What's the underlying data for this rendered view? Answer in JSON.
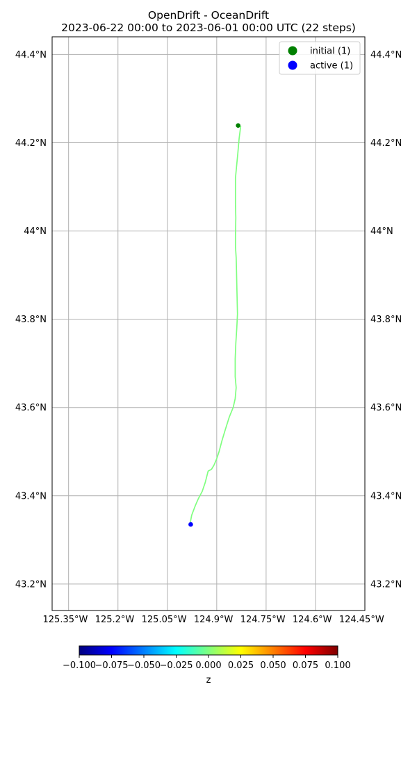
{
  "chart_data": {
    "type": "line",
    "title": "OpenDrift - OceanDrift",
    "subtitle": "2023-06-22 00:00 to 2023-06-01 00:00 UTC (22 steps)",
    "xlim": [
      -125.39,
      -124.44
    ],
    "ylim": [
      43.14,
      44.44
    ],
    "grid": true,
    "x_ticks": [
      {
        "value": -125.35,
        "label": "125.35°W"
      },
      {
        "value": -125.2,
        "label": "125.2°W"
      },
      {
        "value": -125.05,
        "label": "125.05°W"
      },
      {
        "value": -124.9,
        "label": "124.9°W"
      },
      {
        "value": -124.75,
        "label": "124.75°W"
      },
      {
        "value": -124.6,
        "label": "124.6°W"
      },
      {
        "value": -124.45,
        "label": "124.45°W"
      }
    ],
    "x_grid": [
      -125.34,
      -125.19,
      -125.04,
      -124.89,
      -124.74,
      -124.59,
      -124.44
    ],
    "y_ticks": [
      {
        "value": 44.4,
        "label": "44.4°N"
      },
      {
        "value": 44.2,
        "label": "44.2°N"
      },
      {
        "value": 44.0,
        "label": "44°N"
      },
      {
        "value": 43.8,
        "label": "43.8°N"
      },
      {
        "value": 43.6,
        "label": "43.6°N"
      },
      {
        "value": 43.4,
        "label": "43.4°N"
      },
      {
        "value": 43.2,
        "label": "43.2°N"
      }
    ],
    "legend": {
      "position": "top-right",
      "entries": [
        {
          "label": "initial (1)",
          "color": "#008000"
        },
        {
          "label": "active (1)",
          "color": "#0000ff"
        }
      ]
    },
    "series": [
      {
        "color": "#80ff80",
        "points": [
          [
            -124.817,
            44.238
          ],
          [
            -124.822,
            44.21
          ],
          [
            -124.826,
            44.176
          ],
          [
            -124.83,
            44.145
          ],
          [
            -124.833,
            44.12
          ],
          [
            -124.833,
            44.06
          ],
          [
            -124.832,
            44.03
          ],
          [
            -124.833,
            43.99
          ],
          [
            -124.833,
            43.965
          ],
          [
            -124.831,
            43.94
          ],
          [
            -124.83,
            43.91
          ],
          [
            -124.829,
            43.88
          ],
          [
            -124.828,
            43.845
          ],
          [
            -124.827,
            43.812
          ],
          [
            -124.829,
            43.78
          ],
          [
            -124.832,
            43.745
          ],
          [
            -124.834,
            43.71
          ],
          [
            -124.834,
            43.67
          ],
          [
            -124.831,
            43.645
          ],
          [
            -124.834,
            43.62
          ],
          [
            -124.84,
            43.6
          ],
          [
            -124.852,
            43.578
          ],
          [
            -124.864,
            43.55
          ],
          [
            -124.874,
            43.525
          ],
          [
            -124.883,
            43.5
          ],
          [
            -124.89,
            43.484
          ],
          [
            -124.898,
            43.47
          ],
          [
            -124.906,
            43.46
          ],
          [
            -124.916,
            43.456
          ],
          [
            -124.925,
            43.43
          ],
          [
            -124.934,
            43.41
          ],
          [
            -124.946,
            43.393
          ],
          [
            -124.955,
            43.378
          ],
          [
            -124.966,
            43.356
          ],
          [
            -124.97,
            43.34
          ]
        ]
      }
    ],
    "markers": [
      {
        "name": "initial",
        "lon": -124.825,
        "lat": 44.239,
        "color": "#008000"
      },
      {
        "name": "active",
        "lon": -124.969,
        "lat": 43.335,
        "color": "#0000ff"
      }
    ],
    "colorbar": {
      "label": "z",
      "range": [
        -0.1,
        0.1
      ],
      "ticks": [
        {
          "value": -0.1,
          "label": "−0.100"
        },
        {
          "value": -0.075,
          "label": "−0.075"
        },
        {
          "value": -0.05,
          "label": "−0.050"
        },
        {
          "value": -0.025,
          "label": "−0.025"
        },
        {
          "value": 0.0,
          "label": "0.000"
        },
        {
          "value": 0.025,
          "label": "0.025"
        },
        {
          "value": 0.05,
          "label": "0.050"
        },
        {
          "value": 0.075,
          "label": "0.075"
        },
        {
          "value": 0.1,
          "label": "0.100"
        }
      ],
      "colormap": [
        "#00007f",
        "#0000ff",
        "#007fff",
        "#00ffff",
        "#7fff7f",
        "#ffff00",
        "#ff7f00",
        "#ff0000",
        "#7f0000"
      ]
    }
  }
}
